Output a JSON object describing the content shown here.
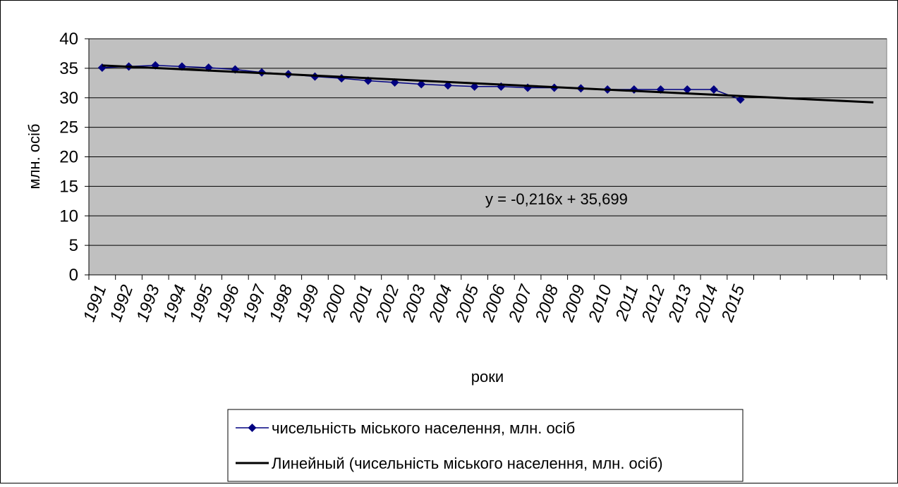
{
  "chart_data": {
    "type": "line",
    "ylabel": "млн. осіб",
    "xlabel": "роки",
    "ylim": [
      0,
      40
    ],
    "yticks": [
      0,
      5,
      10,
      15,
      20,
      25,
      30,
      35,
      40
    ],
    "grid": true,
    "legend_position": "bottom",
    "plot_background": "#c0c0c0",
    "x_slots": 30,
    "categories": [
      "1991",
      "1992",
      "1993",
      "1994",
      "1995",
      "1996",
      "1997",
      "1998",
      "1999",
      "2000",
      "2001",
      "2002",
      "2003",
      "2004",
      "2005",
      "2006",
      "2007",
      "2008",
      "2009",
      "2010",
      "2011",
      "2012",
      "2013",
      "2014",
      "2015"
    ],
    "series": [
      {
        "name": "чисельність міського населення, млн. осіб",
        "color": "#000080",
        "marker": "diamond",
        "values": [
          35.1,
          35.3,
          35.5,
          35.3,
          35.1,
          34.8,
          34.3,
          34.0,
          33.6,
          33.3,
          32.9,
          32.6,
          32.3,
          32.1,
          31.9,
          31.9,
          31.7,
          31.7,
          31.6,
          31.4,
          31.4,
          31.4,
          31.4,
          31.4,
          29.7
        ]
      }
    ],
    "trendline": {
      "name": "Линейный (чисельність міського населення, млн. осіб)",
      "color": "#000000",
      "slope": -0.216,
      "intercept": 35.699,
      "equation": "y = -0,216x + 35,699"
    }
  }
}
